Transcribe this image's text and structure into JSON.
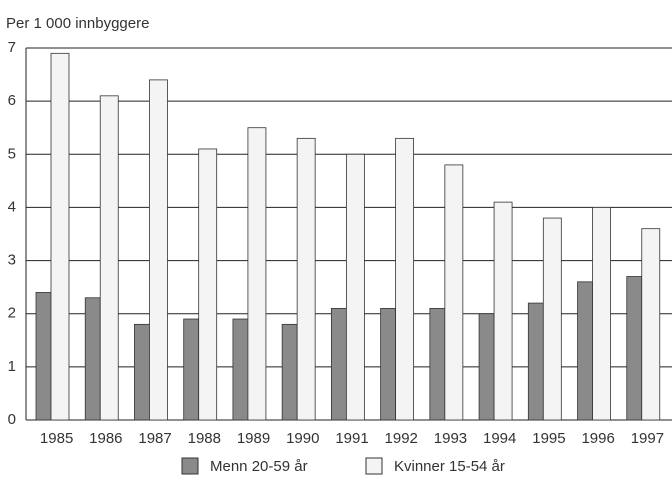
{
  "chart_data": {
    "type": "bar",
    "y_label": "Per 1 000 innbyggere",
    "categories": [
      "1985",
      "1986",
      "1987",
      "1988",
      "1989",
      "1990",
      "1991",
      "1992",
      "1993",
      "1994",
      "1995",
      "1996",
      "1997"
    ],
    "series": [
      {
        "name": "Menn 20-59 år",
        "color": "#8a8a8a",
        "values": [
          2.4,
          2.3,
          1.8,
          1.9,
          1.9,
          1.8,
          2.1,
          2.1,
          2.1,
          2.0,
          2.2,
          2.6,
          2.7
        ]
      },
      {
        "name": "Kvinner 15-54 år",
        "color": "#f4f4f4",
        "values": [
          6.9,
          6.1,
          6.4,
          5.1,
          5.5,
          5.3,
          5.0,
          5.3,
          4.8,
          4.1,
          3.8,
          4.0,
          3.6
        ]
      }
    ],
    "ylim": [
      0,
      7
    ],
    "yticks": [
      0,
      1,
      2,
      3,
      4,
      5,
      6,
      7
    ],
    "grid": true,
    "legend": "bottom"
  }
}
